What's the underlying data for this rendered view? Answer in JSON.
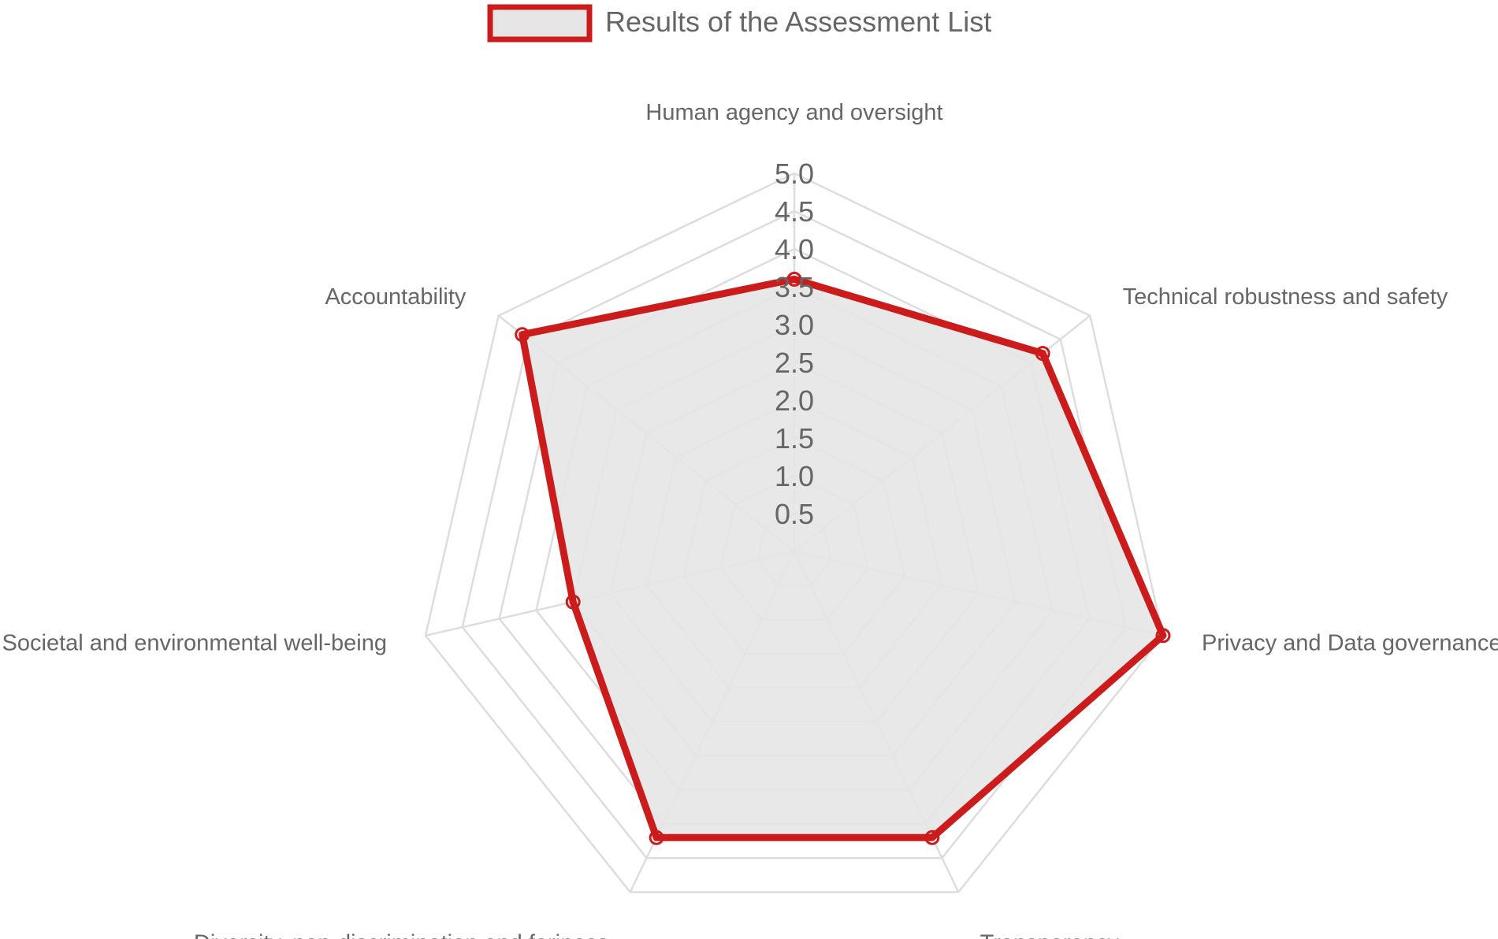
{
  "chart_data": {
    "type": "radar",
    "axes": [
      "Human agency and oversight",
      "Technical robustness and safety",
      "Privacy and Data governance",
      "Transparency",
      "Diversity, non-discrimination and fariness",
      "Societal and environmental well-being",
      "Accountability"
    ],
    "series": [
      {
        "name": "Results of the Assessment List",
        "values": [
          3.6,
          4.2,
          5.0,
          4.2,
          4.2,
          3.0,
          4.6
        ],
        "line_color": "#cc1b1b",
        "fill_color": "#e6e6e6"
      }
    ],
    "r_range": [
      0,
      5.0
    ],
    "ticks": [
      "0.5",
      "1.0",
      "1.5",
      "2.0",
      "2.5",
      "3.0",
      "3.5",
      "4.0",
      "4.5",
      "5.0"
    ],
    "tick_values": [
      0.5,
      1.0,
      1.5,
      2.0,
      2.5,
      3.0,
      3.5,
      4.0,
      4.5,
      5.0
    ],
    "grid": true,
    "grid_color": "#dddddd",
    "legend_position": "top"
  }
}
